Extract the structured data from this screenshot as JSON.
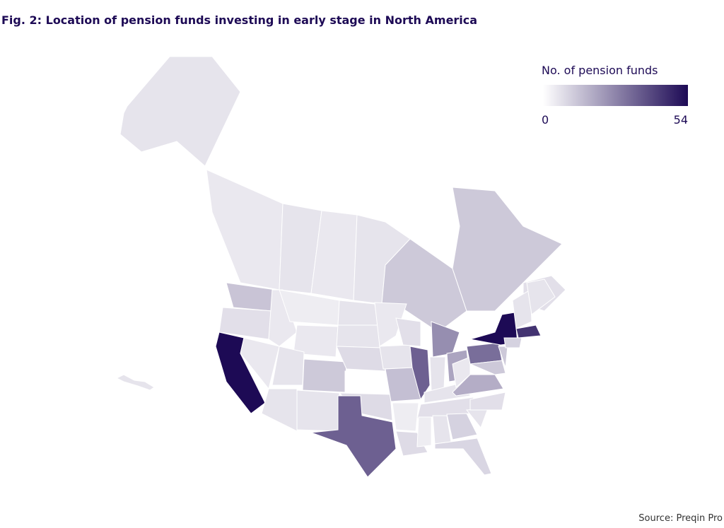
{
  "title": "Fig. 2: Location of pension funds investing in early stage in North America",
  "legend": {
    "title": "No. of pension funds",
    "min": 0,
    "max": 54,
    "colors": [
      "#ffffff",
      "#1d0a55"
    ]
  },
  "regions": {
    "values": [
      6,
      5,
      6,
      5,
      6,
      12,
      12,
      7,
      13,
      7,
      54,
      5,
      5,
      4,
      5,
      6,
      6,
      12,
      6,
      6,
      6,
      8,
      0,
      8,
      35,
      5,
      6,
      14,
      4,
      8,
      7,
      35,
      25,
      6,
      20,
      6,
      7,
      4,
      6,
      10,
      9,
      6,
      7,
      18,
      5,
      32,
      12,
      12,
      54,
      6,
      6,
      45,
      10,
      6
    ]
  },
  "source": "Source: Preqin Pro"
}
